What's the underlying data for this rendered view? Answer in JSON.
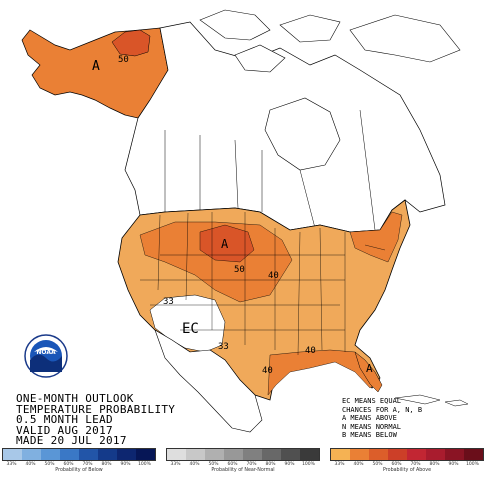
{
  "title_lines": [
    "ONE-MONTH OUTLOOK",
    "TEMPERATURE PROBABILITY",
    "0.5 MONTH LEAD",
    "VALID AUG 2017",
    "MADE 20 JUL 2017"
  ],
  "logo": {
    "text": "NOAA",
    "icon": "noaa-logo"
  },
  "legend_note": [
    "EC MEANS EQUAL",
    "CHANCES FOR A, N, B",
    "A MEANS ABOVE",
    "N MEANS NORMAL",
    "B MEANS BELOW"
  ],
  "map_labels": {
    "alaska_a": "A",
    "alaska_50": "50",
    "plains_a": "A",
    "plains_50": "50",
    "plains_40": "40",
    "west_33": "33",
    "southwest_33": "33",
    "ec": "EC",
    "gulf_40_texas": "40",
    "gulf_40_east": "40",
    "florida_a": "A"
  },
  "colors": {
    "above_33": "#f0a95a",
    "above_40": "#ea8035",
    "above_50": "#d95528",
    "map_background": "#ffffff",
    "boundaries": "#000000"
  },
  "legend": {
    "below": {
      "caption": "Probability of Below",
      "ticks": [
        "33%",
        "40%",
        "50%",
        "60%",
        "70%",
        "80%",
        "90%",
        "100%"
      ],
      "colors": [
        "#a8c8e8",
        "#80b0e0",
        "#5a96d6",
        "#3a78c6",
        "#2255a8",
        "#143a8a",
        "#0d2670",
        "#061656"
      ]
    },
    "normal": {
      "caption": "Probability of Near-Normal",
      "ticks": [
        "33%",
        "40%",
        "50%",
        "60%",
        "70%",
        "80%",
        "90%",
        "100%"
      ],
      "colors": [
        "#dedede",
        "#c8c8c8",
        "#b0b0b0",
        "#989898",
        "#808080",
        "#686868",
        "#505050",
        "#3a3a3a"
      ]
    },
    "above": {
      "caption": "Probability of Above",
      "ticks": [
        "33%",
        "40%",
        "50%",
        "60%",
        "70%",
        "80%",
        "90%",
        "100%"
      ],
      "colors": [
        "#f5b253",
        "#ea8035",
        "#dc5e2a",
        "#cc3f28",
        "#c22633",
        "#a91c2e",
        "#8a1424",
        "#6a0e1a"
      ]
    }
  }
}
